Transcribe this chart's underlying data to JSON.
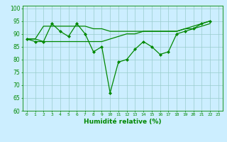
{
  "line1_y": [
    88,
    87,
    87,
    94,
    91,
    89,
    94,
    90,
    83,
    85,
    67,
    79,
    80,
    84,
    87,
    85,
    82,
    83,
    90,
    91,
    92,
    94,
    95
  ],
  "line2_y": [
    88,
    88,
    87,
    87,
    87,
    87,
    87,
    87,
    87,
    87,
    88,
    89,
    90,
    90,
    91,
    91,
    91,
    91,
    91,
    92,
    92,
    93,
    94
  ],
  "line3_y": [
    88,
    88,
    93,
    93,
    93,
    93,
    93,
    93,
    92,
    92,
    91,
    91,
    91,
    91,
    91,
    91,
    91,
    91,
    91,
    92,
    93,
    94,
    95
  ],
  "x": [
    0,
    1,
    2,
    3,
    4,
    5,
    6,
    7,
    8,
    9,
    10,
    11,
    12,
    13,
    14,
    15,
    16,
    17,
    18,
    19,
    20,
    21,
    22
  ],
  "xlim": [
    -0.5,
    23.5
  ],
  "ylim": [
    60,
    101
  ],
  "yticks": [
    60,
    65,
    70,
    75,
    80,
    85,
    90,
    95,
    100
  ],
  "xtick_labels": [
    "0",
    "1",
    "2",
    "3",
    "4",
    "5",
    "6",
    "7",
    "8",
    "9",
    "10",
    "11",
    "12",
    "13",
    "14",
    "15",
    "16",
    "17",
    "18",
    "19",
    "20",
    "21",
    "22",
    "23"
  ],
  "xlabel": "Humidité relative (%)",
  "line_color": "#008800",
  "bg_color": "#cceeff",
  "grid_color": "#99cccc"
}
